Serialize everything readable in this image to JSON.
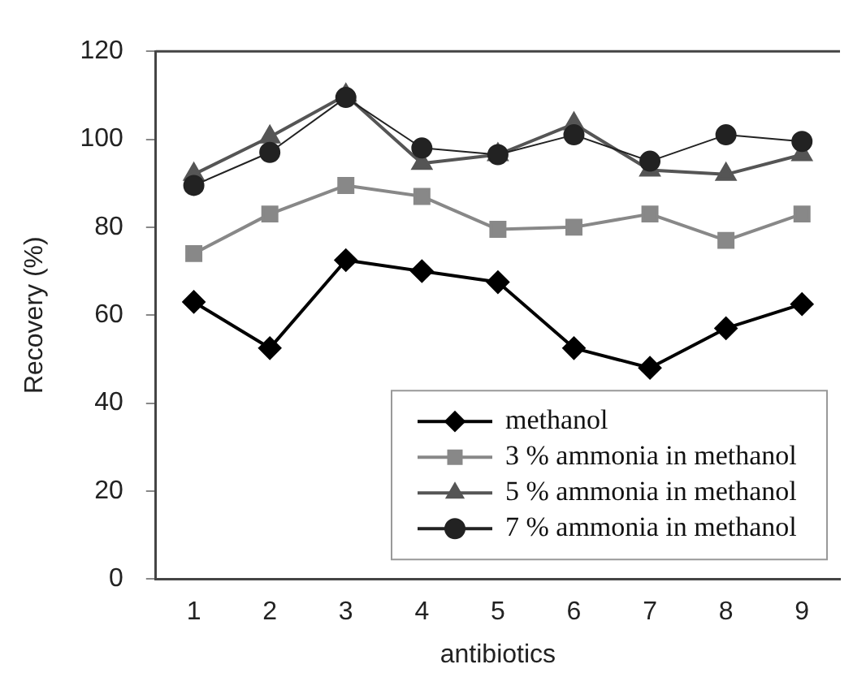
{
  "chart_data": {
    "type": "line",
    "xlabel": "antibiotics",
    "ylabel": "Recovery (%)",
    "categories": [
      "1",
      "2",
      "3",
      "4",
      "5",
      "6",
      "7",
      "8",
      "9"
    ],
    "series": [
      {
        "name": "methanol",
        "color": "#000000",
        "marker": "diamond",
        "values": [
          63,
          52.5,
          72.5,
          70,
          67.5,
          52.5,
          48,
          57,
          62.5
        ]
      },
      {
        "name": "3 % ammonia in methanol",
        "color": "#888888",
        "marker": "square",
        "values": [
          74,
          83,
          89.5,
          87,
          79.5,
          80,
          83,
          77,
          83
        ]
      },
      {
        "name": "5 % ammonia in methanol",
        "color": "#555555",
        "marker": "triangle",
        "values": [
          92,
          100.5,
          110,
          94.5,
          96.5,
          103.5,
          93,
          92,
          96.5
        ]
      },
      {
        "name": "7 % ammonia in methanol",
        "color": "#222222",
        "marker": "circle",
        "values": [
          89.5,
          97,
          109.5,
          98,
          96.5,
          101,
          95,
          101,
          99.5
        ]
      }
    ],
    "ylim": [
      0,
      120
    ],
    "yticks": [
      0,
      20,
      40,
      60,
      80,
      100,
      120
    ],
    "grid": false,
    "legend": "bottom right",
    "line_style": "solid"
  }
}
